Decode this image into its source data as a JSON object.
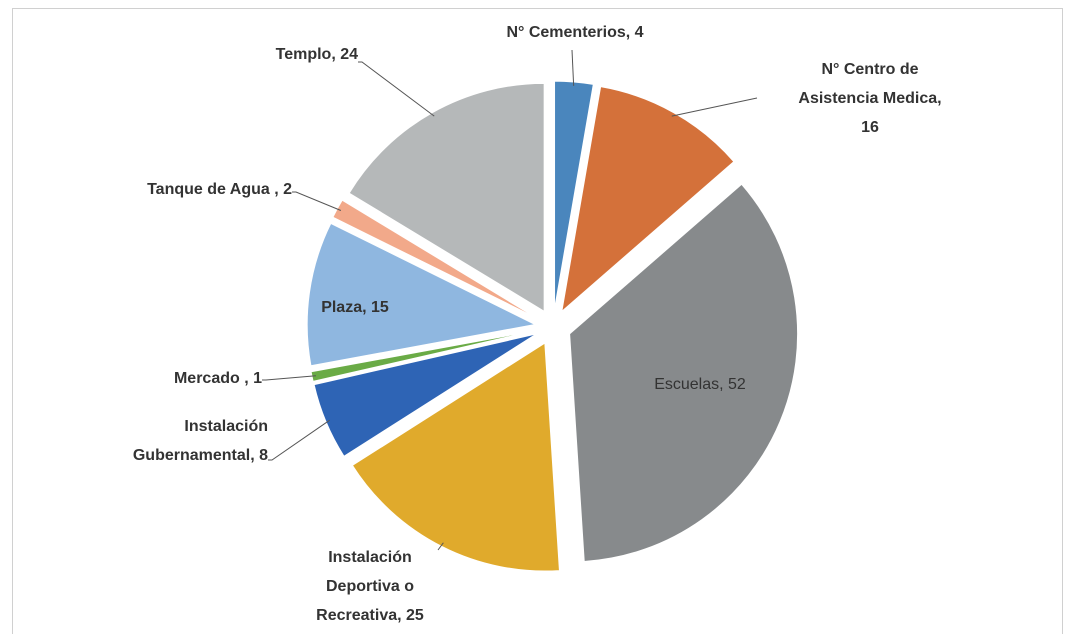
{
  "chart_data": {
    "type": "pie",
    "values": [
      4,
      16,
      52,
      25,
      8,
      1,
      15,
      2,
      24
    ],
    "value_labels": [
      "N° Cementerios, 4",
      "N° Centro de Asistencia Medica, 16",
      "Escuelas, 52",
      "Instalación Deportiva o Recreativa, 25",
      "Instalación Gubernamental, 8",
      "Mercado , 1",
      "Plaza, 15",
      "Tanque de Agua , 2",
      "Templo, 24"
    ],
    "colors": [
      "#4a86bd",
      "#d4713a",
      "#878a8c",
      "#e0aa2c",
      "#2e64b5",
      "#6aab46",
      "#8fb7e0",
      "#f2a98a",
      "#b5b8b9"
    ],
    "exploded": true
  }
}
